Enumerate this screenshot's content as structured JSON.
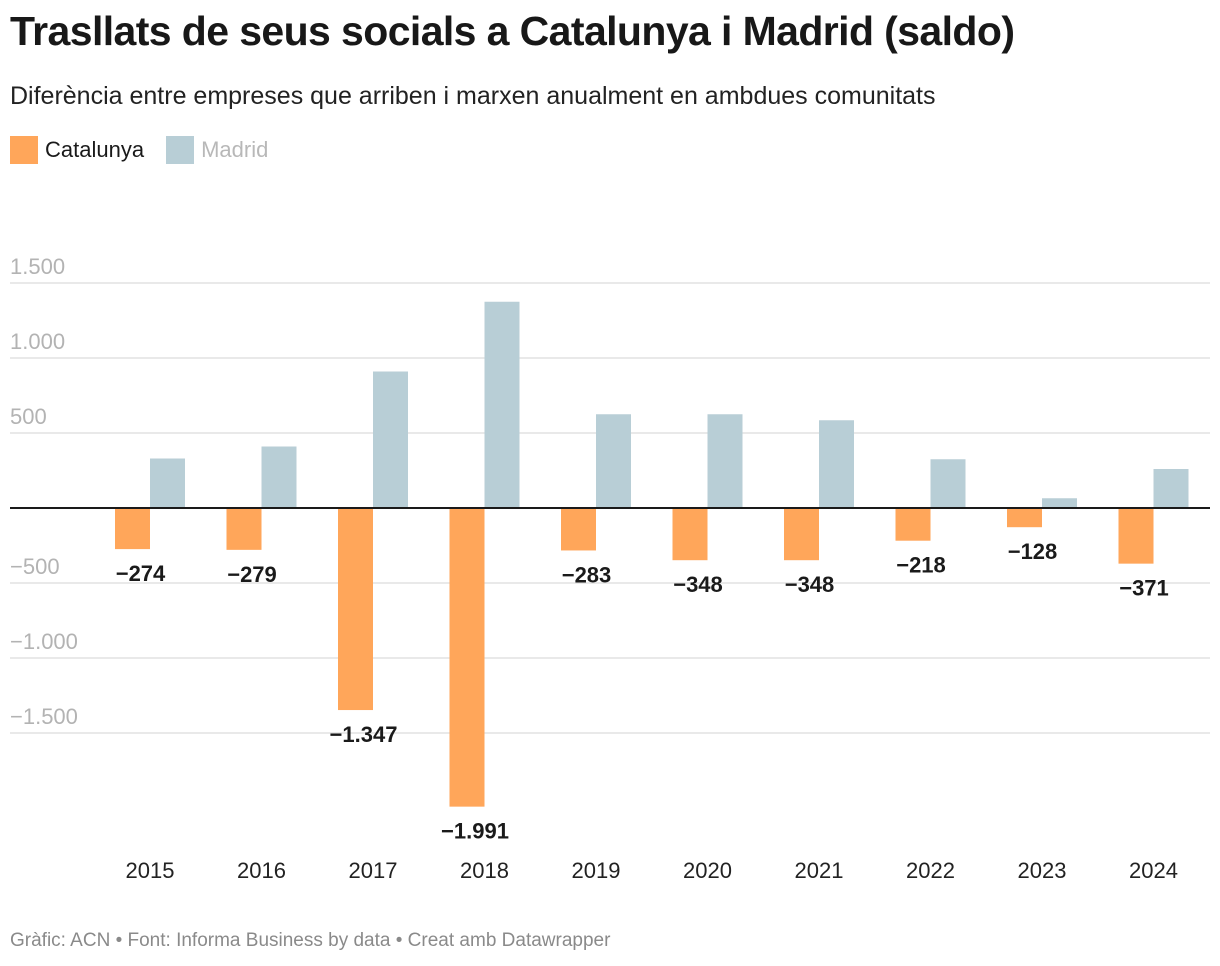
{
  "chart_data": {
    "type": "bar",
    "title": "Trasllats de seus socials a Catalunya i Madrid (saldo)",
    "subtitle": "Diferència entre empreses que arriben i marxen anualment en ambdues comunitats",
    "categories": [
      "2015",
      "2016",
      "2017",
      "2018",
      "2019",
      "2020",
      "2021",
      "2022",
      "2023",
      "2024"
    ],
    "series": [
      {
        "name": "Catalunya",
        "color": "#FFA65A",
        "values": [
          -274,
          -279,
          -1347,
          -1991,
          -283,
          -348,
          -348,
          -218,
          -128,
          -371
        ],
        "labels": [
          "−274",
          "−279",
          "−1.347",
          "−1.991",
          "−283",
          "−348",
          "−348",
          "−218",
          "−128",
          "−371"
        ]
      },
      {
        "name": "Madrid",
        "color": "#B8CED6",
        "values": [
          330,
          410,
          910,
          1375,
          625,
          625,
          585,
          325,
          65,
          260
        ]
      }
    ],
    "yticks": [
      {
        "value": 1500,
        "label": "1.500"
      },
      {
        "value": 1000,
        "label": "1.000"
      },
      {
        "value": 500,
        "label": "500"
      },
      {
        "value": -500,
        "label": "−500"
      },
      {
        "value": -1000,
        "label": "−1.000"
      },
      {
        "value": -1500,
        "label": "−1.500"
      }
    ],
    "ylim": [
      -2150,
      1680
    ],
    "grid": true,
    "legend_position": "top-left"
  },
  "footer": "Gràfic: ACN • Font: Informa Business by data  • Creat amb Datawrapper"
}
